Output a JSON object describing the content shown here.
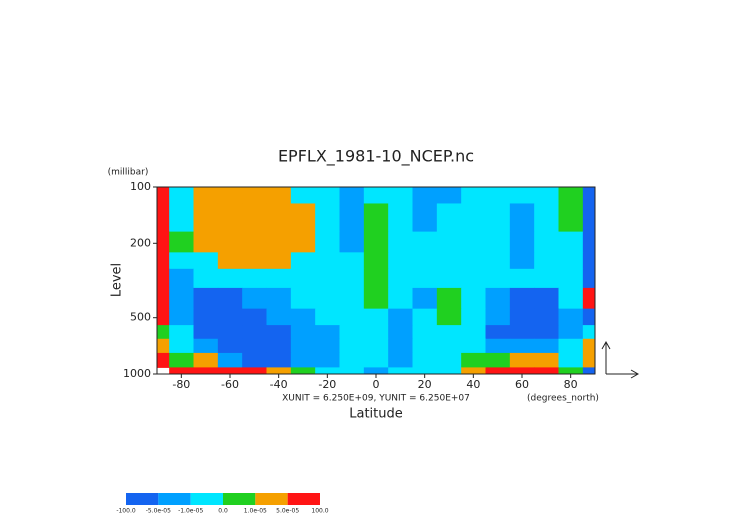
{
  "chart_data": {
    "type": "contour",
    "title": "EPFLX_1981-10_NCEP.nc",
    "y_unit_label": "(millibar)",
    "y_label": "Level",
    "x_label": "Latitude",
    "units_note": "XUNIT = 6.250E+09, YUNIT = 6.250E+07",
    "x_unit_label": "(degrees_north)",
    "xlim": [
      -90,
      90
    ],
    "xticks": [
      -80,
      -60,
      -40,
      -20,
      0,
      20,
      40,
      60,
      80
    ],
    "ylim": [
      1000,
      100
    ],
    "yticks": [
      100,
      200,
      500,
      1000
    ],
    "y_log": true,
    "x": [
      -90,
      -80,
      -70,
      -60,
      -50,
      -40,
      -30,
      -20,
      -10,
      0,
      10,
      20,
      30,
      40,
      50,
      60,
      70,
      80,
      90
    ],
    "y": [
      100,
      150,
      200,
      250,
      300,
      400,
      500,
      600,
      700,
      850,
      1000
    ],
    "z": [
      [
        0.0002,
        -5e-06,
        3e-05,
        3e-05,
        3e-05,
        3e-05,
        -5e-06,
        -5e-06,
        -3e-05,
        -5e-06,
        -5e-06,
        -3e-05,
        -3e-05,
        -5e-06,
        -5e-06,
        -5e-06,
        -5e-06,
        5e-06,
        -0.0001
      ],
      [
        0.0002,
        -5e-06,
        3e-05,
        3e-05,
        3e-05,
        3e-05,
        3e-05,
        -5e-06,
        -3e-05,
        5e-06,
        -5e-06,
        -3e-05,
        -5e-06,
        -5e-06,
        -5e-06,
        -3e-05,
        -5e-06,
        5e-06,
        -0.0001
      ],
      [
        0.0002,
        5e-06,
        3e-05,
        3e-05,
        3e-05,
        3e-05,
        3e-05,
        -5e-06,
        -3e-05,
        5e-06,
        -5e-06,
        -5e-06,
        -5e-06,
        -5e-06,
        -5e-06,
        -3e-05,
        -5e-06,
        -5e-06,
        -0.0001
      ],
      [
        0.0002,
        -5e-06,
        -5e-06,
        3e-05,
        3e-05,
        3e-05,
        -5e-06,
        -5e-06,
        -5e-06,
        5e-06,
        -5e-06,
        -5e-06,
        -5e-06,
        -5e-06,
        -5e-06,
        -3e-05,
        -5e-06,
        -5e-06,
        -0.0001
      ],
      [
        0.0002,
        -3e-05,
        -5e-06,
        -5e-06,
        -5e-06,
        -5e-06,
        -5e-06,
        -5e-06,
        -5e-06,
        5e-06,
        -5e-06,
        -5e-06,
        -5e-06,
        -5e-06,
        -5e-06,
        -5e-06,
        -5e-06,
        -5e-06,
        -0.0001
      ],
      [
        0.0002,
        -3e-05,
        -0.0001,
        -0.0001,
        -3e-05,
        -3e-05,
        -5e-06,
        -5e-06,
        -5e-06,
        5e-06,
        -5e-06,
        -3e-05,
        5e-06,
        -5e-06,
        -3e-05,
        -0.0001,
        -0.0001,
        -5e-06,
        0.0002
      ],
      [
        0.0002,
        -3e-05,
        -0.0001,
        -0.0001,
        -0.0001,
        -3e-05,
        -3e-05,
        -5e-06,
        -5e-06,
        -5e-06,
        -3e-05,
        -5e-06,
        5e-06,
        -5e-06,
        -3e-05,
        -0.0001,
        -0.0001,
        -3e-05,
        -0.0001
      ],
      [
        5e-06,
        -5e-06,
        -0.0001,
        -0.0001,
        -0.0001,
        -0.0001,
        -3e-05,
        -3e-05,
        -5e-06,
        -5e-06,
        -3e-05,
        -5e-06,
        -5e-06,
        -5e-06,
        -0.0001,
        -0.0001,
        -0.0001,
        -3e-05,
        -5e-06
      ],
      [
        3e-05,
        -5e-06,
        -3e-05,
        -0.0001,
        -0.0001,
        -0.0001,
        -3e-05,
        -3e-05,
        -5e-06,
        -5e-06,
        -3e-05,
        -5e-06,
        -5e-06,
        -5e-06,
        -3e-05,
        -3e-05,
        -3e-05,
        -5e-06,
        3e-05
      ],
      [
        0.0002,
        5e-06,
        3e-05,
        -3e-05,
        -0.0001,
        -0.0001,
        -3e-05,
        -3e-05,
        -5e-06,
        -5e-06,
        -3e-05,
        -5e-06,
        -5e-06,
        5e-06,
        5e-06,
        3e-05,
        3e-05,
        -5e-06,
        3e-05
      ],
      [
        null,
        0.0002,
        0.0002,
        0.0002,
        0.0002,
        3e-05,
        5e-06,
        -5e-06,
        -5e-06,
        -3e-05,
        -5e-06,
        -5e-06,
        -5e-06,
        3e-05,
        0.0002,
        0.0002,
        0.0002,
        5e-06,
        -0.0001
      ]
    ],
    "levels": [
      {
        "value": -100,
        "label": "-100.0"
      },
      {
        "value": -5e-05,
        "label": "-5.0e-05"
      },
      {
        "value": -1e-05,
        "label": "-1.0e-05"
      },
      {
        "value": 0,
        "label": "0.0"
      },
      {
        "value": 1e-05,
        "label": "1.0e-05"
      },
      {
        "value": 5e-05,
        "label": "5.0e-05"
      },
      {
        "value": 100,
        "label": "100.0"
      }
    ],
    "colors": [
      "#1464f0",
      "#00a0ff",
      "#00e6ff",
      "#20d020",
      "#f5a000",
      "#ff1414"
    ]
  }
}
